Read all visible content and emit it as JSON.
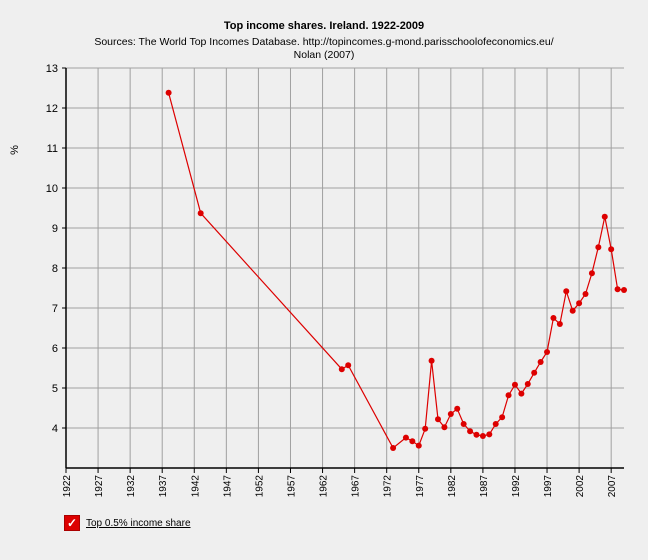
{
  "chart_data": {
    "type": "line",
    "title": "Top income shares. Ireland. 1922-2009",
    "subtitle_line1": "Sources: The World Top Incomes Database. http://topincomes.g-mond.parisschoolofeconomics.eu/",
    "subtitle_line2": "Nolan (2007)",
    "ylabel": "%",
    "xlabel": "",
    "xlim": [
      1922,
      2009
    ],
    "ylim": [
      3,
      13
    ],
    "x_ticks": [
      1922,
      1927,
      1932,
      1937,
      1942,
      1947,
      1952,
      1957,
      1962,
      1967,
      1972,
      1977,
      1982,
      1987,
      1992,
      1997,
      2002,
      2007
    ],
    "y_ticks": [
      4,
      5,
      6,
      7,
      8,
      9,
      10,
      11,
      12,
      13
    ],
    "grid": true,
    "series": [
      {
        "name": "Top 0.5% income share",
        "color": "#dd0000",
        "x": [
          1938,
          1943,
          1965,
          1966,
          1973,
          1975,
          1976,
          1977,
          1978,
          1979,
          1980,
          1981,
          1982,
          1983,
          1984,
          1985,
          1986,
          1987,
          1988,
          1989,
          1990,
          1991,
          1992,
          1993,
          1994,
          1995,
          1996,
          1997,
          1998,
          1999,
          2000,
          2001,
          2002,
          2003,
          2004,
          2005,
          2006,
          2007,
          2008,
          2009
        ],
        "y": [
          12.38,
          9.37,
          5.47,
          5.57,
          3.5,
          3.76,
          3.67,
          3.56,
          3.98,
          5.68,
          4.22,
          4.02,
          4.35,
          4.48,
          4.1,
          3.92,
          3.83,
          3.8,
          3.84,
          4.1,
          4.27,
          4.82,
          5.08,
          4.86,
          5.1,
          5.38,
          5.65,
          5.9,
          6.75,
          6.6,
          7.42,
          6.93,
          7.12,
          7.35,
          7.87,
          8.52,
          9.28,
          8.47,
          7.47,
          7.45
        ]
      }
    ]
  },
  "legend": {
    "check_glyph": "✓",
    "label": "Top 0.5% income share"
  }
}
